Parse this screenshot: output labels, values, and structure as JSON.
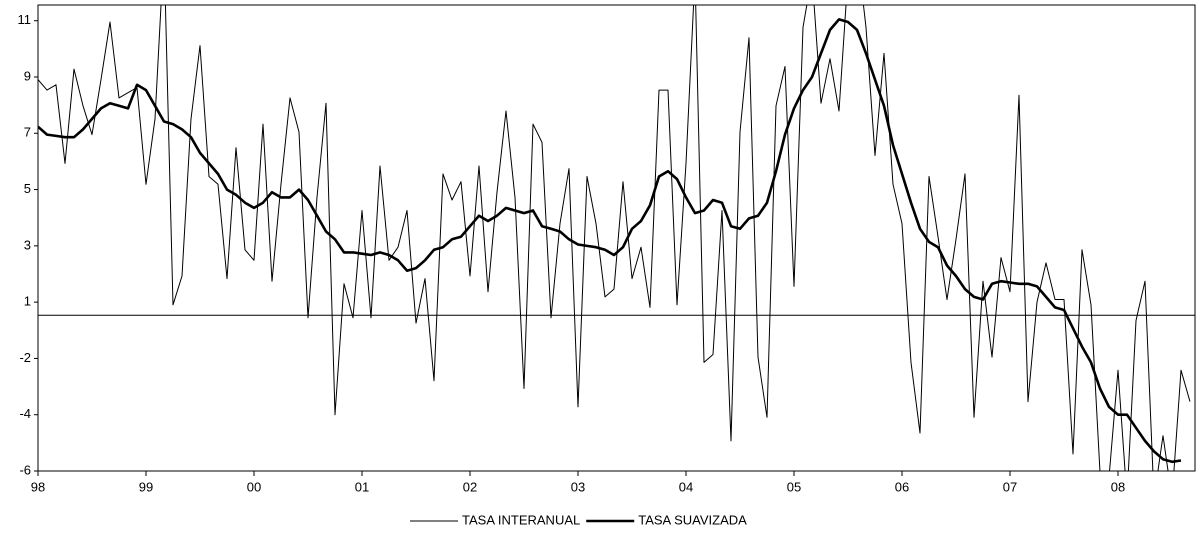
{
  "chart_data": {
    "type": "line",
    "categories": [
      "98",
      null,
      null,
      null,
      null,
      null,
      null,
      null,
      null,
      null,
      null,
      null,
      "99",
      null,
      null,
      null,
      null,
      null,
      null,
      null,
      null,
      null,
      null,
      null,
      "00",
      null,
      null,
      null,
      null,
      null,
      null,
      null,
      null,
      null,
      null,
      null,
      "01",
      null,
      null,
      null,
      null,
      null,
      null,
      null,
      null,
      null,
      null,
      null,
      "02",
      null,
      null,
      null,
      null,
      null,
      null,
      null,
      null,
      null,
      null,
      null,
      "03",
      null,
      null,
      null,
      null,
      null,
      null,
      null,
      null,
      null,
      null,
      null,
      "04",
      null,
      null,
      null,
      null,
      null,
      null,
      null,
      null,
      null,
      null,
      null,
      "05",
      null,
      null,
      null,
      null,
      null,
      null,
      null,
      null,
      null,
      null,
      null,
      "06",
      null,
      null,
      null,
      null,
      null,
      null,
      null,
      null,
      null,
      null,
      null,
      "07",
      null,
      null,
      null,
      null,
      null,
      null,
      null,
      null,
      null,
      null,
      null,
      "08",
      null,
      null,
      null,
      null,
      null,
      null,
      null,
      null
    ],
    "series": [
      {
        "name": "TASA INTERANUAL",
        "color": "#000000",
        "values": [
          9.0,
          8.6,
          8.8,
          5.8,
          9.4,
          8.0,
          6.9,
          9.0,
          11.2,
          8.3,
          8.5,
          8.7,
          5.0,
          7.5,
          14.0,
          0.4,
          1.5,
          7.5,
          10.3,
          5.3,
          5.0,
          1.4,
          6.4,
          2.5,
          2.1,
          7.3,
          1.3,
          5.0,
          8.3,
          7.0,
          -0.1,
          4.5,
          8.1,
          -3.8,
          1.2,
          -0.1,
          4.0,
          -0.1,
          5.7,
          2.1,
          2.6,
          4.0,
          -0.3,
          1.4,
          -2.5,
          5.4,
          4.4,
          5.1,
          1.5,
          5.7,
          0.9,
          4.7,
          7.8,
          4.5,
          -2.8,
          7.3,
          6.6,
          -0.1,
          3.5,
          5.6,
          -3.5,
          5.3,
          3.5,
          0.7,
          1.0,
          5.1,
          1.4,
          2.6,
          0.3,
          8.6,
          8.6,
          0.4,
          5.8,
          13,
          -1.8,
          -1.5,
          4.0,
          -4.8,
          7.0,
          10.6,
          -1.6,
          -3.9,
          8.0,
          9.5,
          1.1,
          11,
          13,
          8.1,
          9.8,
          7.8,
          13,
          14,
          11,
          6.1,
          10.0,
          5.0,
          3.5,
          -1.8,
          -4.5,
          5.3,
          3.0,
          0.6,
          2.9,
          5.4,
          -3.9,
          1.3,
          -1.6,
          2.2,
          0.9,
          8.4,
          -3.3,
          0.5,
          2.0,
          0.6,
          0.6,
          -5.3,
          2.5,
          0.4,
          -6.0,
          -6.2,
          -2.1,
          -7,
          -0.2,
          1.3,
          -7,
          -4.6,
          -7,
          -2.1,
          -3.3
        ]
      },
      {
        "name": "TASA SUAVIZADA",
        "color": "#000000",
        "values": [
          7.2,
          6.9,
          6.85,
          6.8,
          6.8,
          7.1,
          7.5,
          7.9,
          8.1,
          8.0,
          7.9,
          8.8,
          8.6,
          8.0,
          7.4,
          7.3,
          7.1,
          6.8,
          6.2,
          5.8,
          5.4,
          4.8,
          4.6,
          4.3,
          4.1,
          4.3,
          4.7,
          4.5,
          4.5,
          4.8,
          4.4,
          3.8,
          3.2,
          2.9,
          2.4,
          2.4,
          2.35,
          2.3,
          2.4,
          2.3,
          2.1,
          1.7,
          1.8,
          2.1,
          2.5,
          2.6,
          2.9,
          3.0,
          3.4,
          3.8,
          3.6,
          3.8,
          4.1,
          4.0,
          3.9,
          4.0,
          3.4,
          3.3,
          3.2,
          2.9,
          2.7,
          2.65,
          2.6,
          2.5,
          2.3,
          2.6,
          3.3,
          3.6,
          4.2,
          5.3,
          5.5,
          5.2,
          4.5,
          3.9,
          4.0,
          4.4,
          4.3,
          3.4,
          3.3,
          3.7,
          3.8,
          4.3,
          5.5,
          6.9,
          7.9,
          8.6,
          9.1,
          10.0,
          10.9,
          11.3,
          11.2,
          10.9,
          10.0,
          9.0,
          8.0,
          6.5,
          5.4,
          4.3,
          3.3,
          2.8,
          2.6,
          1.9,
          1.5,
          1.0,
          0.7,
          0.6,
          1.2,
          1.3,
          1.25,
          1.2,
          1.2,
          1.1,
          0.7,
          0.3,
          0.2,
          -0.5,
          -1.2,
          -1.8,
          -2.8,
          -3.5,
          -3.8,
          -3.8,
          -4.3,
          -4.8,
          -5.2,
          -5.5,
          -5.6,
          -5.55,
          null
        ]
      }
    ],
    "ylim": [
      -5.95,
      11.85
    ],
    "yticks": [
      {
        "value": -5.95,
        "label": "-6"
      },
      {
        "value": -3.8,
        "label": "-4"
      },
      {
        "value": -1.65,
        "label": "-2"
      },
      {
        "value": 0.5,
        "label": "1"
      },
      {
        "value": 2.65,
        "label": "3"
      },
      {
        "value": 4.8,
        "label": "5"
      },
      {
        "value": 6.95,
        "label": "7"
      },
      {
        "value": 9.1,
        "label": "9"
      },
      {
        "value": 11.25,
        "label": "11"
      }
    ],
    "legend": "bottom"
  }
}
